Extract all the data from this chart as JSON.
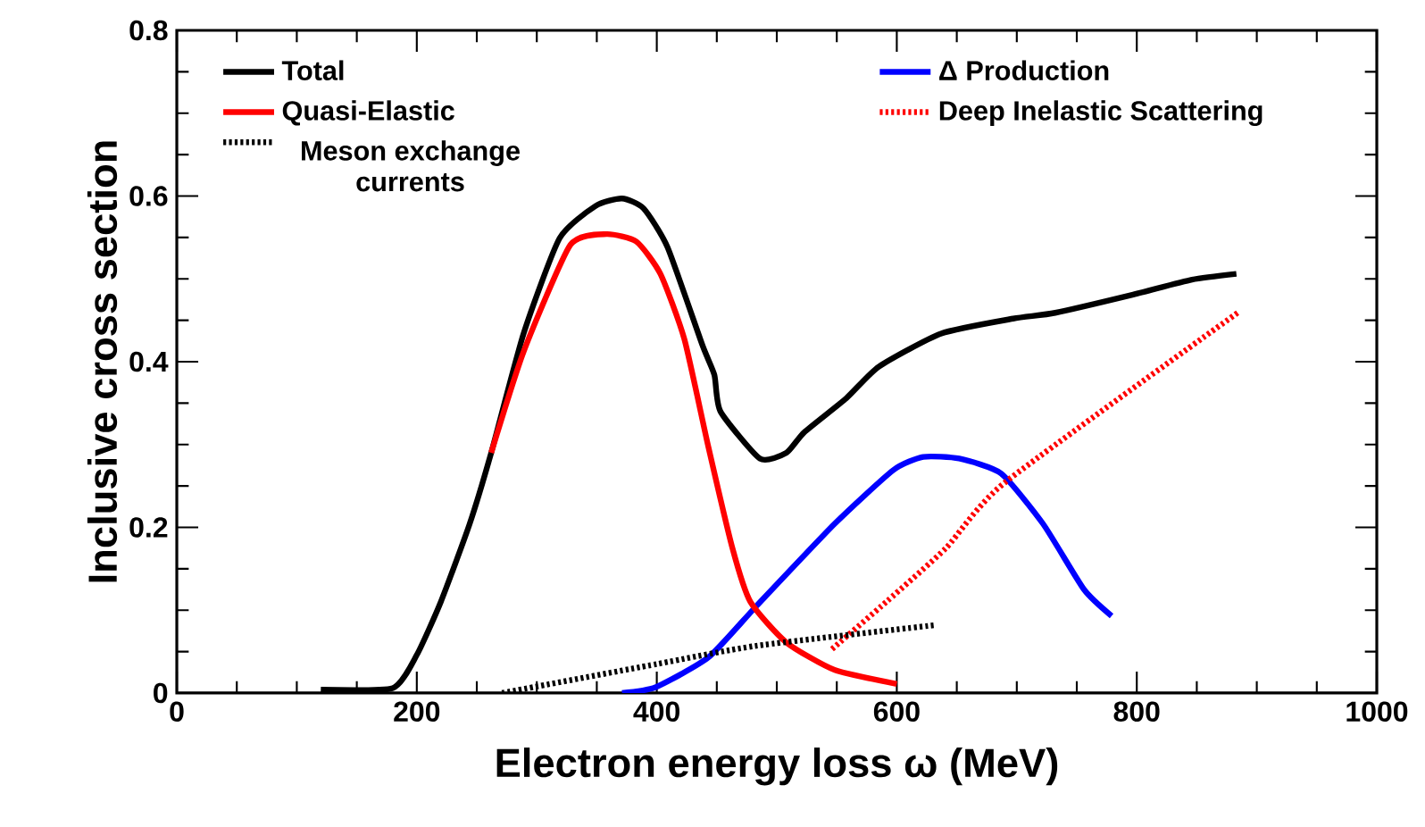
{
  "chart_data": {
    "type": "line",
    "xlabel": "Electron energy loss ω (MeV)",
    "ylabel": "Inclusive cross section",
    "xlim": [
      0,
      1000
    ],
    "xticks": [
      0,
      200,
      400,
      600,
      800,
      1000
    ],
    "ylim": [
      0,
      0.8
    ],
    "yticks": [
      0,
      0.2,
      0.4,
      0.6,
      0.8
    ],
    "legend": "top",
    "line_style": "solid",
    "series": [
      {
        "name": "Total",
        "color": "#000000",
        "x": [
          120,
          180,
          200,
          220,
          244,
          262,
          289,
          319,
          349,
          371,
          389,
          409,
          438,
          448,
          453,
          486,
          508,
          523,
          558,
          585,
          637,
          697,
          732,
          797,
          846,
          883
        ],
        "values": [
          0.004,
          0.006,
          0.046,
          0.11,
          0.204,
          0.29,
          0.434,
          0.549,
          0.588,
          0.597,
          0.585,
          0.538,
          0.42,
          0.384,
          0.34,
          0.283,
          0.29,
          0.315,
          0.356,
          0.394,
          0.434,
          0.452,
          0.459,
          0.481,
          0.499,
          0.506
        ]
      },
      {
        "name": "Quasi-Elastic",
        "color": "#ff0000",
        "x": [
          262,
          289,
          328,
          358,
          383,
          403,
          423,
          443,
          463,
          478,
          508,
          548,
          600
        ],
        "values": [
          0.29,
          0.412,
          0.541,
          0.554,
          0.545,
          0.506,
          0.427,
          0.297,
          0.175,
          0.11,
          0.061,
          0.028,
          0.011
        ]
      },
      {
        "name": "Meson exchange currents",
        "color": "#000000",
        "line_style": "dotted",
        "x": [
          271,
          400,
          483,
          632
        ],
        "values": [
          0.0,
          0.035,
          0.057,
          0.082
        ]
      },
      {
        "name": "Δ Production",
        "color": "#0000ff",
        "x": [
          371,
          399,
          443,
          483,
          548,
          597,
          622,
          652,
          687,
          722,
          756,
          779
        ],
        "values": [
          0.0,
          0.007,
          0.043,
          0.105,
          0.204,
          0.269,
          0.285,
          0.283,
          0.265,
          0.204,
          0.125,
          0.093
        ]
      },
      {
        "name": "Deep Inelastic Scattering",
        "color": "#ff0000",
        "line_style": "dotted",
        "x": [
          546,
          592,
          641,
          690,
          884
        ],
        "values": [
          0.053,
          0.111,
          0.175,
          0.254,
          0.459
        ]
      }
    ]
  }
}
